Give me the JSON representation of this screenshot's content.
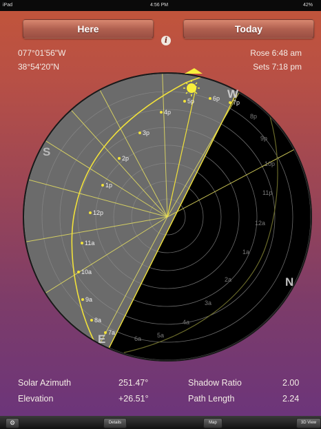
{
  "status_bar": {
    "device": "iPad",
    "time": "4:56 PM",
    "battery": "42%"
  },
  "header": {
    "location_button": "Here",
    "date_button": "Today",
    "info_icon": "info-icon"
  },
  "coords": {
    "longitude": "077°01'56\"W",
    "latitude": "38°54'20\"N"
  },
  "sun_times": {
    "rise": "Rose 6:48 am",
    "set": "Sets 7:18 pm"
  },
  "compass": {
    "south": "S",
    "west": "W",
    "north": "N",
    "east": "E"
  },
  "day_hours": [
    "7a",
    "8a",
    "9a",
    "10a",
    "11a",
    "12p",
    "1p",
    "2p",
    "3p",
    "4p",
    "5p",
    "6p",
    "7p"
  ],
  "night_hours": [
    "8p",
    "9p",
    "10p",
    "11p",
    "12a",
    "1a",
    "2a",
    "3a",
    "4a",
    "5a",
    "6a"
  ],
  "readouts": {
    "azimuth_label": "Solar Azimuth",
    "azimuth_value": "251.47°",
    "elevation_label": "Elevation",
    "elevation_value": "+26.51°",
    "shadow_label": "Shadow Ratio",
    "shadow_value": "2.00",
    "path_label": "Path Length",
    "path_value": "2.24"
  },
  "toolbar": {
    "settings_icon": "gear-icon",
    "details": "Details",
    "map": "Map",
    "view3d": "3D View"
  },
  "colors": {
    "accent": "#f2e23a",
    "night": "#000000",
    "day": "#6b6b6b"
  }
}
